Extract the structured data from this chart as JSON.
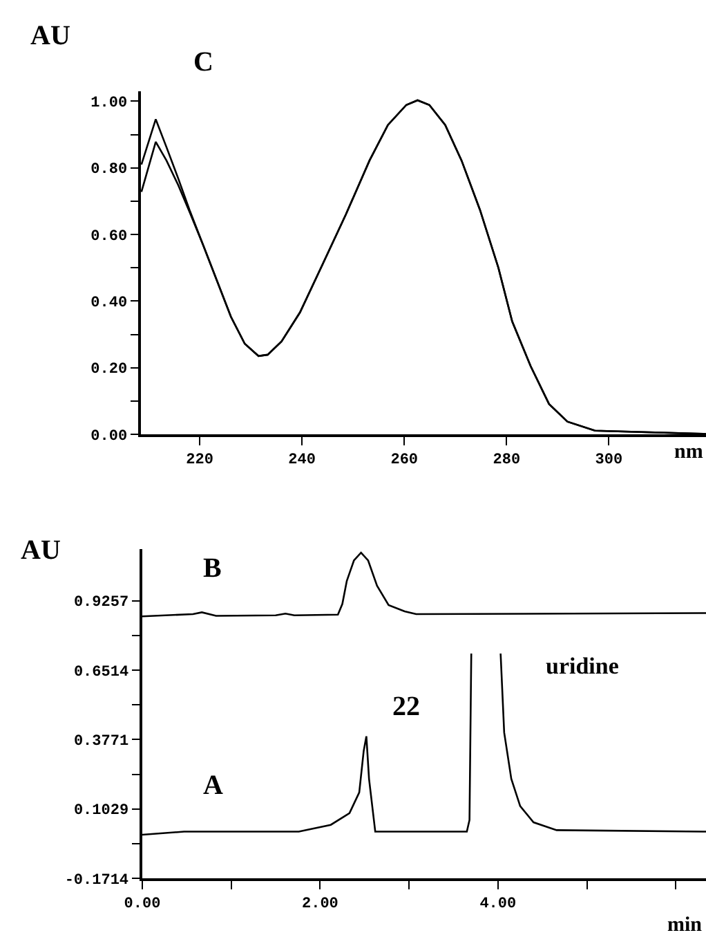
{
  "chart_data": [
    {
      "type": "line",
      "title": "C",
      "xlabel": "nm",
      "ylabel": "AU",
      "xlim": [
        208.5,
        319
      ],
      "ylim": [
        0,
        1.03
      ],
      "xticks": [
        220,
        240,
        260,
        280,
        300
      ],
      "yticks": [
        {
          "value": 0,
          "label": "0.00"
        },
        {
          "value": 0.1,
          "label": null
        },
        {
          "value": 0.2,
          "label": "0.20"
        },
        {
          "value": 0.3,
          "label": null
        },
        {
          "value": 0.4,
          "label": "0.40"
        },
        {
          "value": 0.5,
          "label": null
        },
        {
          "value": 0.6,
          "label": "0.60"
        },
        {
          "value": 0.7,
          "label": null
        },
        {
          "value": 0.8,
          "label": "0.80"
        },
        {
          "value": 0.9,
          "label": null
        },
        {
          "value": 1,
          "label": "1.00"
        }
      ],
      "marker": "none",
      "line_style": "solid",
      "series": [
        {
          "color": "#000000",
          "x": [
            208.6,
            211.4,
            213.5,
            215.8,
            218,
            220.7,
            223.4,
            226.1,
            228.8,
            231.5,
            233.3,
            236,
            239.6,
            244.1,
            248.6,
            253.2,
            256.8,
            260.4,
            262.6,
            264.9,
            268,
            271.2,
            274.8,
            278.4,
            281.1,
            284.7,
            288.3,
            291.9,
            297.3,
            319
          ],
          "values": [
            0.81,
            0.946,
            0.862,
            0.768,
            0.674,
            0.567,
            0.46,
            0.353,
            0.272,
            0.235,
            0.239,
            0.279,
            0.366,
            0.513,
            0.661,
            0.822,
            0.929,
            0.989,
            1.003,
            0.989,
            0.929,
            0.822,
            0.674,
            0.5,
            0.339,
            0.205,
            0.091,
            0.038,
            0.011,
            0.001
          ]
        },
        {
          "color": "#000000",
          "x": [
            208.6,
            211.4,
            213.5,
            215.8,
            218,
            220.7,
            223.4,
            226.1,
            228.8,
            231.5,
            233.3,
            236,
            239.6,
            244.1,
            248.6,
            253.2,
            256.8,
            260.4,
            262.6,
            264.9,
            268,
            271.2,
            274.8,
            278.4,
            281.1,
            284.7,
            288.3,
            291.9,
            297.3,
            319
          ],
          "values": [
            0.728,
            0.878,
            0.822,
            0.748,
            0.668,
            0.567,
            0.46,
            0.353,
            0.272,
            0.235,
            0.239,
            0.279,
            0.366,
            0.513,
            0.661,
            0.822,
            0.929,
            0.989,
            1.003,
            0.989,
            0.929,
            0.822,
            0.674,
            0.5,
            0.339,
            0.205,
            0.091,
            0.038,
            0.011,
            0.001
          ]
        }
      ]
    },
    {
      "type": "line",
      "xlabel": "min",
      "ylabel": "AU",
      "xlim": [
        0,
        6.34
      ],
      "ylim": [
        -0.1714,
        1.13
      ],
      "xticks": [
        {
          "value": 0,
          "label": "0.00"
        },
        {
          "value": 1,
          "label": null
        },
        {
          "value": 2,
          "label": "2.00"
        },
        {
          "value": 3,
          "label": null
        },
        {
          "value": 4,
          "label": "4.00"
        },
        {
          "value": 5,
          "label": null
        },
        {
          "value": 6,
          "label": null
        }
      ],
      "yticks": [
        -0.1714,
        {
          "value": -0.03425,
          "label": null
        },
        0.1029,
        {
          "value": 0.24,
          "label": null
        },
        0.3771,
        {
          "value": 0.51425,
          "label": null
        },
        0.6514,
        {
          "value": 0.78855,
          "label": null
        },
        0.9257
      ],
      "marker": "none",
      "line_style": "solid",
      "annotations": [
        "22",
        "uridine"
      ],
      "series": [
        {
          "name": "B",
          "color": "#000000",
          "x": [
            0,
            0.57,
            0.67,
            0.83,
            1.5,
            1.61,
            1.71,
            2.2,
            2.25,
            2.3,
            2.38,
            2.46,
            2.54,
            2.64,
            2.77,
            2.95,
            3.08,
            6.34
          ],
          "values": [
            0.864,
            0.873,
            0.88,
            0.866,
            0.868,
            0.875,
            0.868,
            0.871,
            0.913,
            1.004,
            1.085,
            1.116,
            1.085,
            0.985,
            0.909,
            0.884,
            0.873,
            0.877
          ]
        },
        {
          "name": "A",
          "color": "#000000",
          "x": [
            0,
            0.47,
            1.76,
            2.12,
            2.33,
            2.44,
            2.49,
            2.52,
            2.55,
            2.62,
            3.65,
            3.68,
            3.7,
            3.85,
            4.03,
            4.07,
            4.15,
            4.25,
            4.4,
            4.66,
            6.34
          ],
          "values": [
            0.001,
            0.013,
            0.013,
            0.04,
            0.086,
            0.168,
            0.332,
            0.39,
            0.222,
            0.013,
            0.013,
            0.059,
            0.717,
            null,
            0.717,
            0.405,
            0.222,
            0.114,
            0.05,
            0.019,
            0.013
          ]
        }
      ]
    }
  ]
}
